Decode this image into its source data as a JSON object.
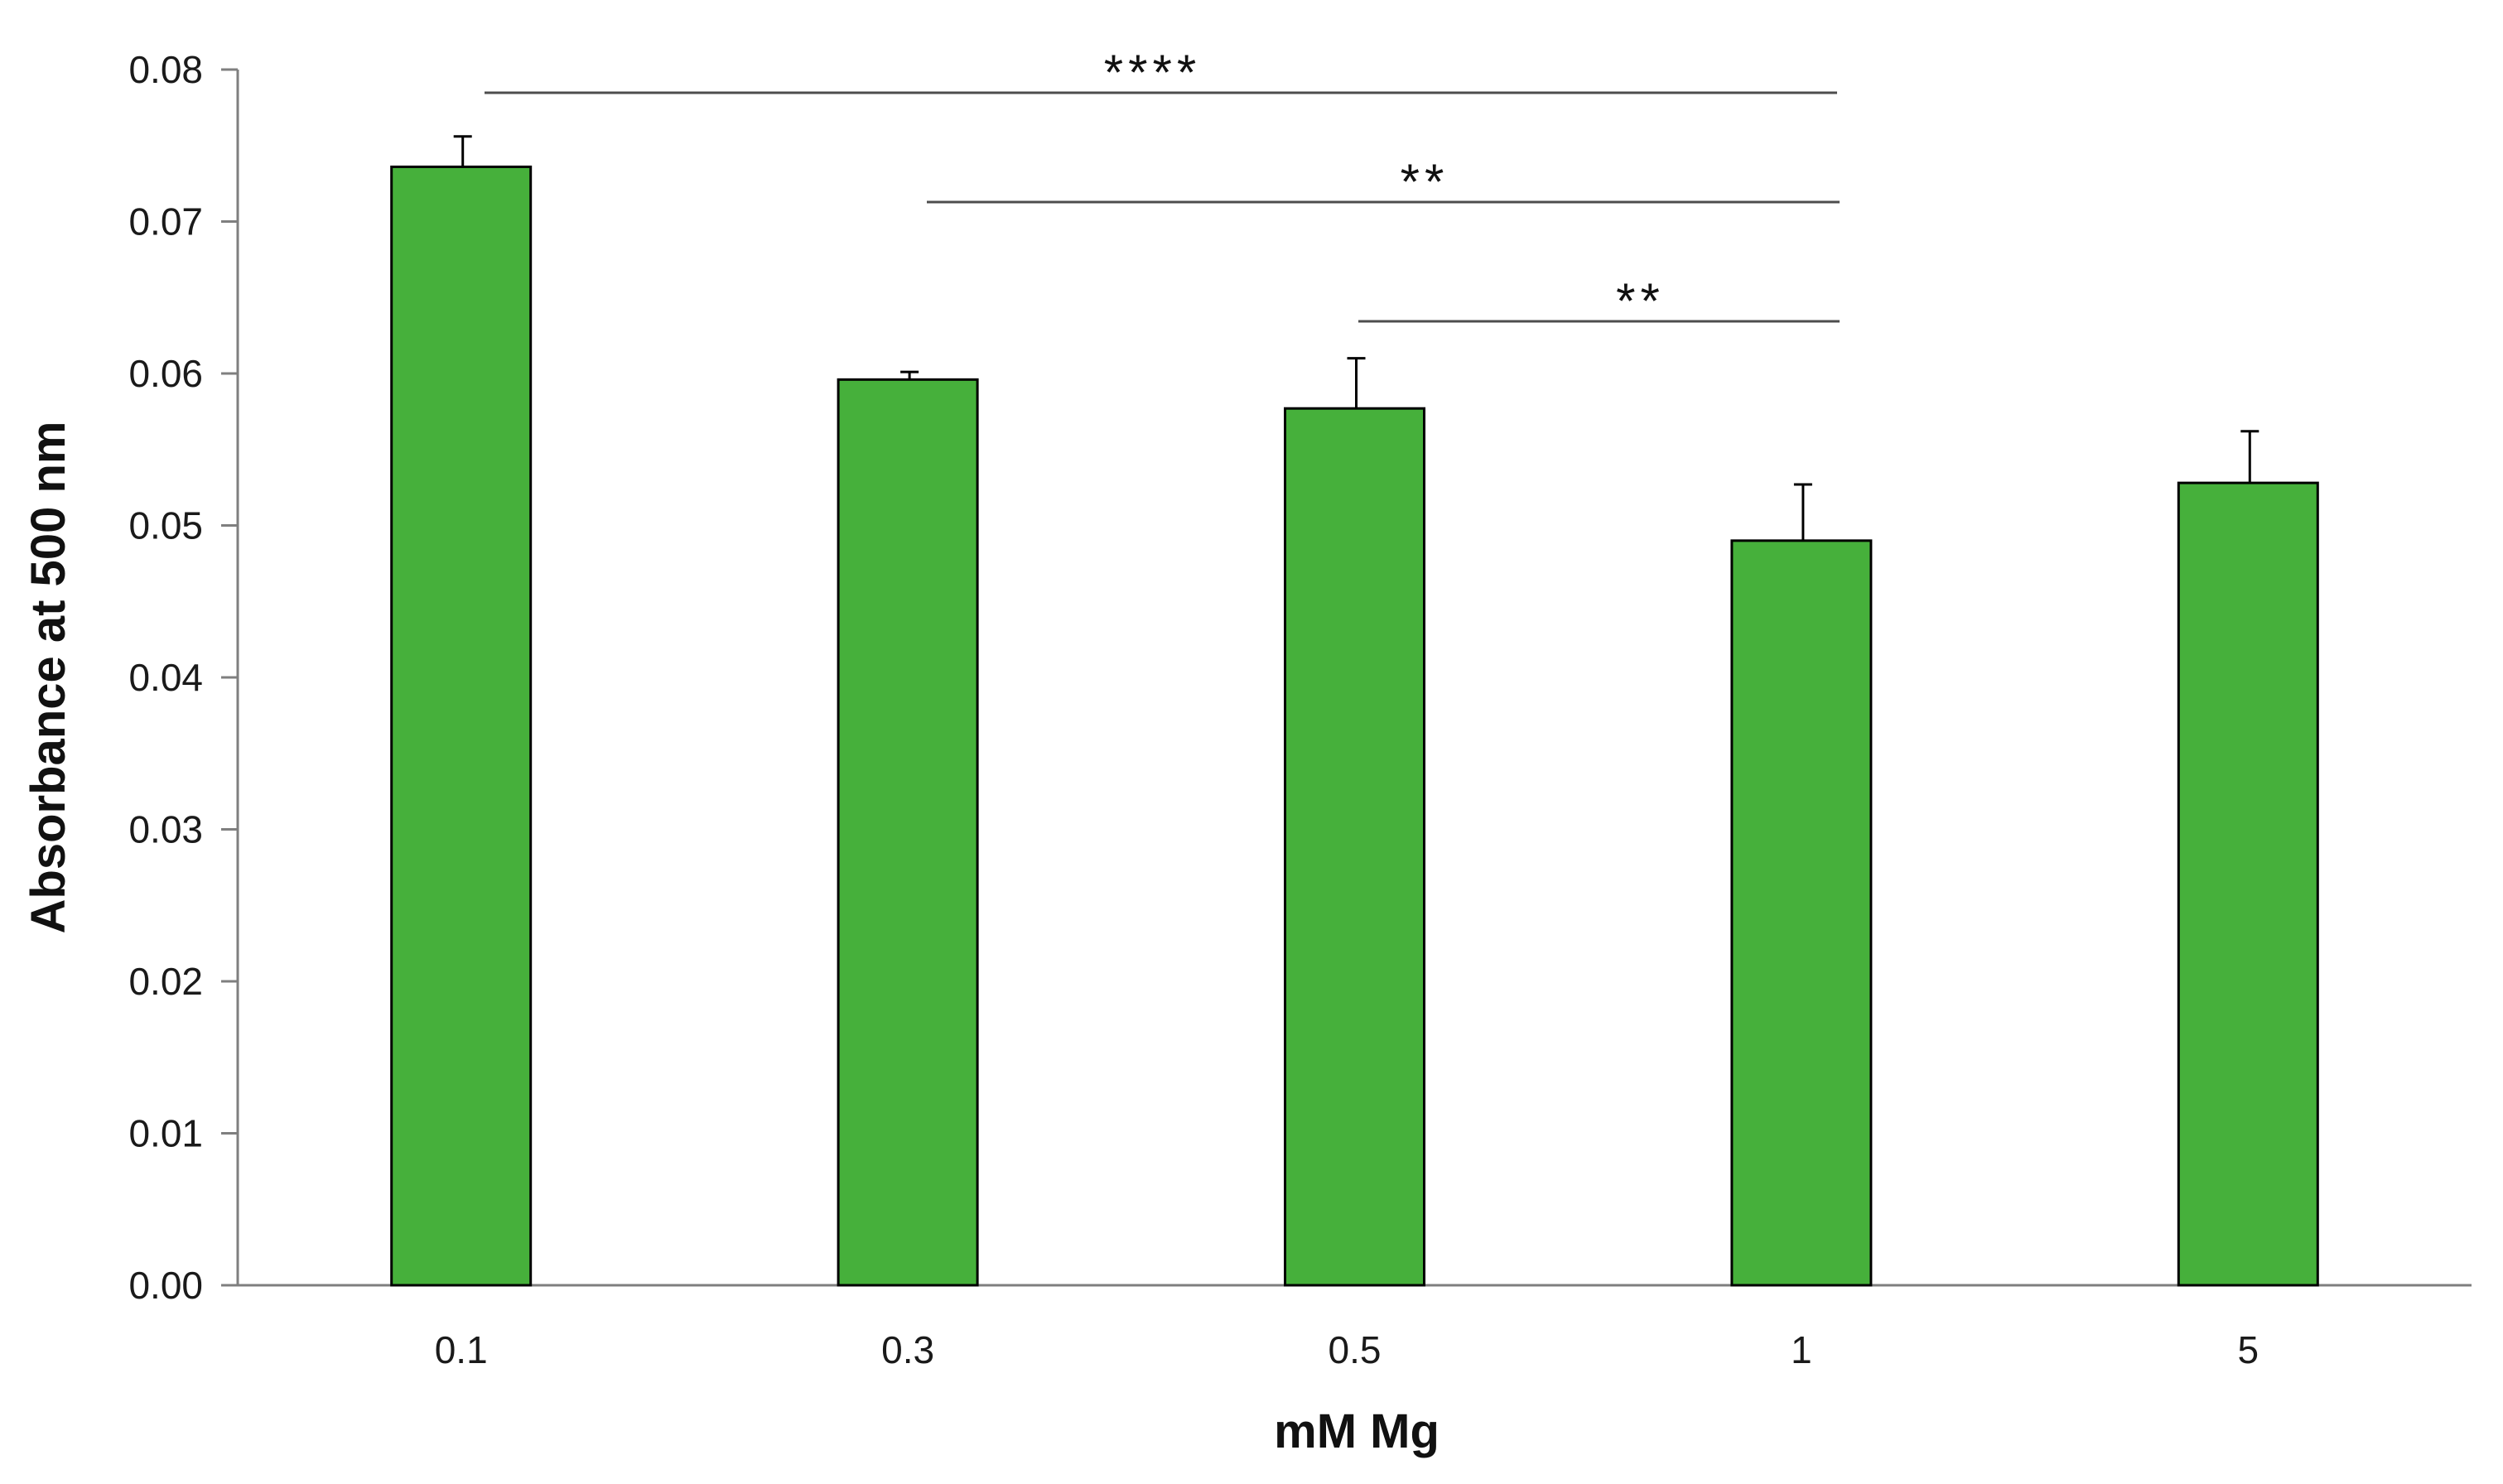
{
  "chart_data": {
    "type": "bar",
    "xlabel": "mM Mg",
    "ylabel": "Absorbance at 500 nm",
    "categories": [
      "0.1",
      "0.3",
      "0.5",
      "1",
      "5"
    ],
    "values": [
      0.0736,
      0.0596,
      0.0577,
      0.049,
      0.0528
    ],
    "errors": [
      0.002,
      0.0005,
      0.0033,
      0.0037,
      0.0034
    ],
    "ylim": [
      0,
      0.08
    ],
    "yticks": [
      "0.00",
      "0.01",
      "0.02",
      "0.03",
      "0.04",
      "0.05",
      "0.06",
      "0.07",
      "0.08"
    ],
    "grid": false,
    "bar_color": "#46b03b",
    "bar_edge_color": "#000000",
    "significance": [
      {
        "from": "0.1",
        "to": "1",
        "label": "****"
      },
      {
        "from": "0.3",
        "to": "1",
        "label": "**"
      },
      {
        "from": "0.5",
        "to": "1",
        "label": "**"
      }
    ]
  }
}
